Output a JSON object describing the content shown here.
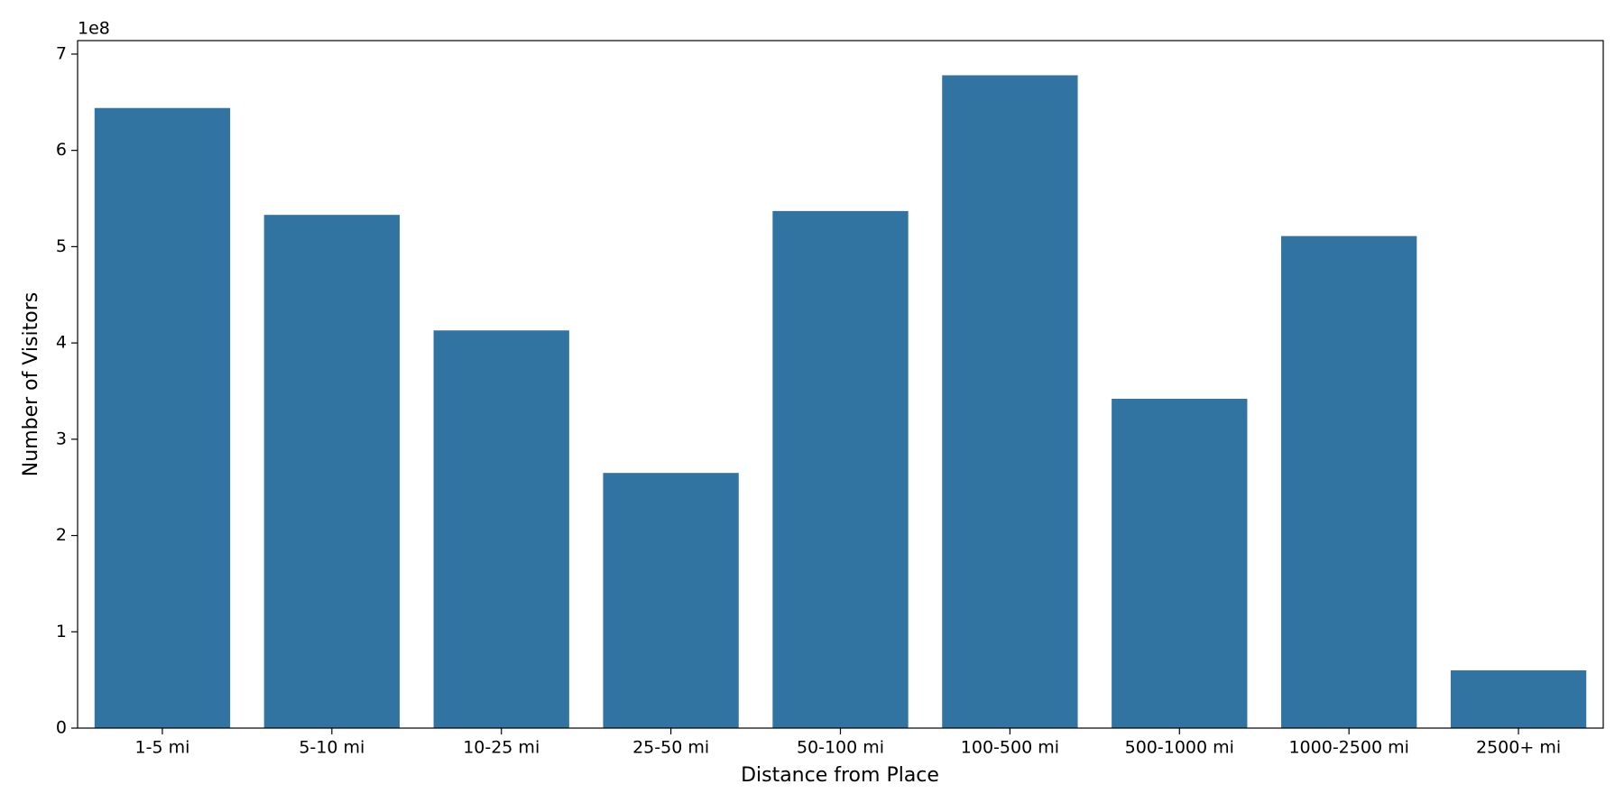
{
  "chart_data": {
    "type": "bar",
    "x_label": "Distance from Place",
    "y_label": "Number of Visitors",
    "y_offset_label": "1e8",
    "categories": [
      "1-5 mi",
      "5-10 mi",
      "10-25 mi",
      "25-50 mi",
      "50-100 mi",
      "100-500 mi",
      "500-1000 mi",
      "1000-2500 mi",
      "2500+ mi"
    ],
    "values": [
      6.44,
      5.33,
      4.13,
      2.65,
      5.37,
      6.78,
      3.42,
      5.11,
      0.6
    ],
    "color": "#3274a1",
    "ylim": [
      0,
      7.14
    ],
    "yticks": [
      0,
      1,
      2,
      3,
      4,
      5,
      6,
      7
    ],
    "grid": false
  }
}
